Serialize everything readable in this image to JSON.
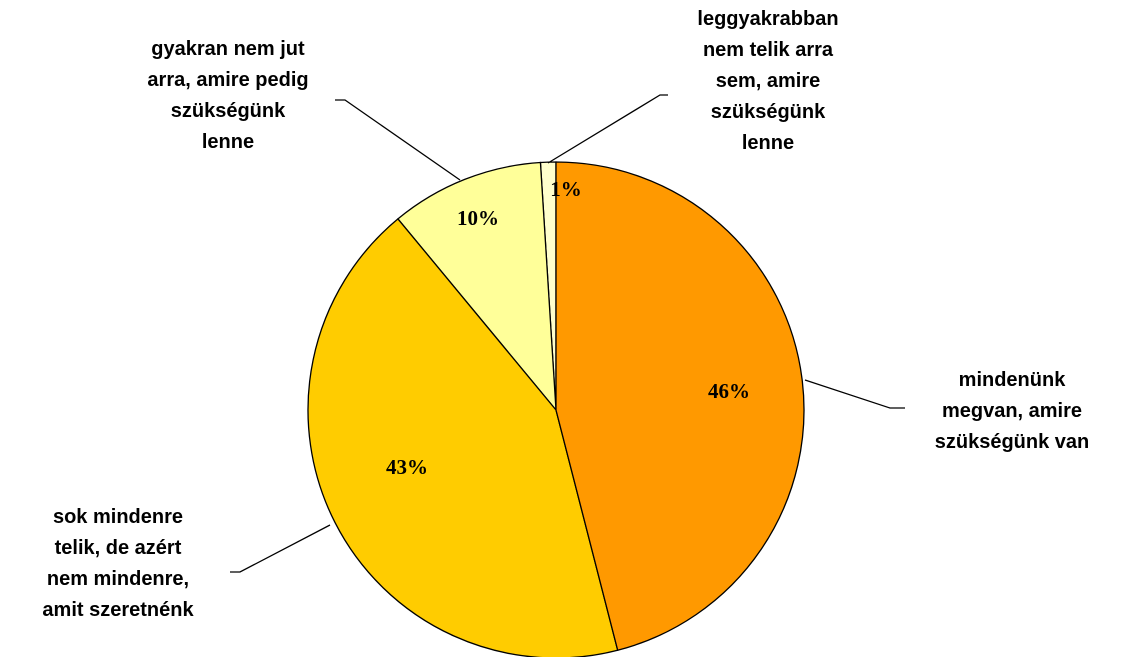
{
  "chart_data": {
    "type": "pie",
    "categories": [
      "mindenünk\nmegvan, amire\nszükségünk van",
      "sok mindenre\ntelik, de azért\nnem mindenre,\namit szeretnénk",
      "gyakran nem jut\narra, amire pedig\nszükségünk\nlenne",
      "leggyakrabban\nnem telik arra\nsem, amire\nszükségünk\nlenne"
    ],
    "values": [
      46,
      43,
      10,
      1
    ],
    "value_labels": [
      "46%",
      "43%",
      "10%",
      "1%"
    ],
    "colors": [
      "#FF9900",
      "#FFCC00",
      "#FFFF99",
      "#FFFFCC"
    ]
  }
}
